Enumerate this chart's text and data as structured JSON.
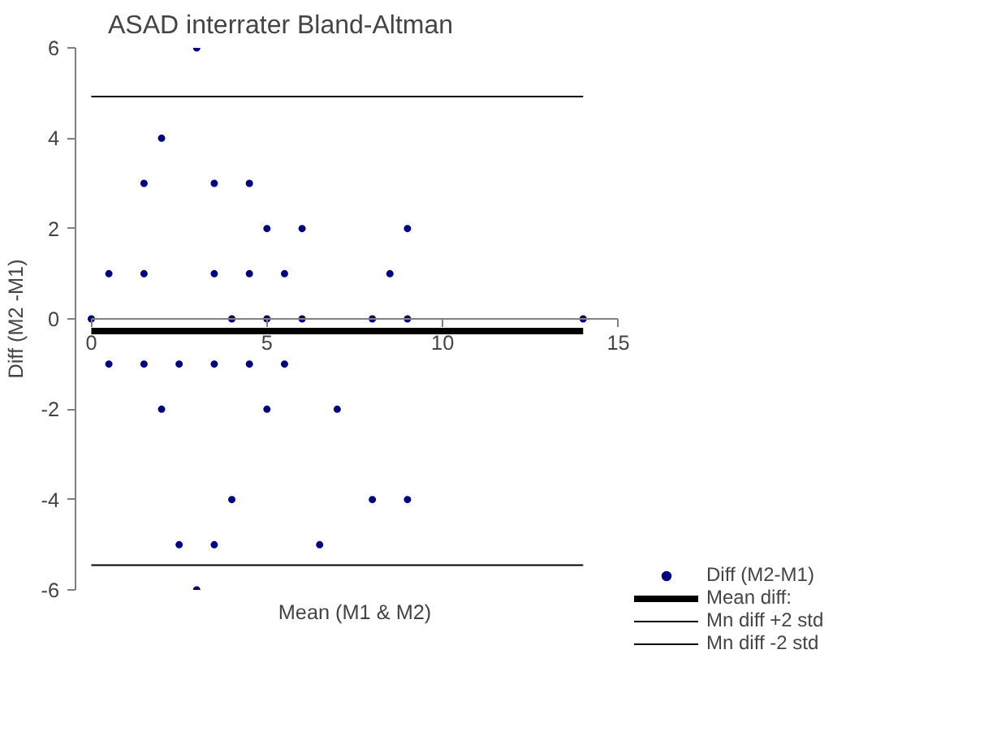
{
  "chart_data": {
    "type": "scatter",
    "title": "ASAD interrater Bland-Altman",
    "xlabel": "Mean (M1 & M2)",
    "ylabel": "Diff (M2 -M1)",
    "xlim": [
      0,
      15
    ],
    "ylim": [
      -6,
      6
    ],
    "xticks": [
      0,
      5,
      10,
      15
    ],
    "yticks": [
      -6,
      -4,
      -2,
      0,
      2,
      4,
      6
    ],
    "grid": false,
    "legend": "bottom right",
    "series": [
      {
        "name": "Diff (M2-M1)",
        "marker": "circle",
        "color": "#000080",
        "x": [
          3,
          2,
          1.5,
          3.5,
          4.5,
          5,
          6,
          9,
          0.5,
          1.5,
          3.5,
          4.5,
          5.5,
          8.5,
          0,
          4,
          5,
          6,
          8,
          9,
          14,
          0.5,
          1.5,
          2.5,
          3.5,
          4.5,
          5.5,
          2,
          5,
          7,
          4,
          8,
          9,
          2.5,
          3.5,
          6.5,
          3
        ],
        "values": [
          6,
          4,
          3,
          3,
          3,
          2,
          2,
          2,
          1,
          1,
          1,
          1,
          1,
          1,
          0,
          0,
          0,
          0,
          0,
          0,
          0,
          -1,
          -1,
          -1,
          -1,
          -1,
          -1,
          -2,
          -2,
          -2,
          -4,
          -4,
          -4,
          -5,
          -5,
          -5,
          -6
        ]
      },
      {
        "name": "Mean diff:",
        "type": "line",
        "color": "#000000",
        "x": [
          0,
          14
        ],
        "values": [
          -0.27,
          -0.27
        ]
      },
      {
        "name": "Mn diff +2 std",
        "type": "line",
        "color": "#000000",
        "x": [
          0,
          14
        ],
        "values": [
          4.92,
          4.92
        ]
      },
      {
        "name": "Mn diff -2 std",
        "type": "line",
        "color": "#000000",
        "x": [
          0,
          14
        ],
        "values": [
          -5.45,
          -5.45
        ]
      }
    ]
  }
}
